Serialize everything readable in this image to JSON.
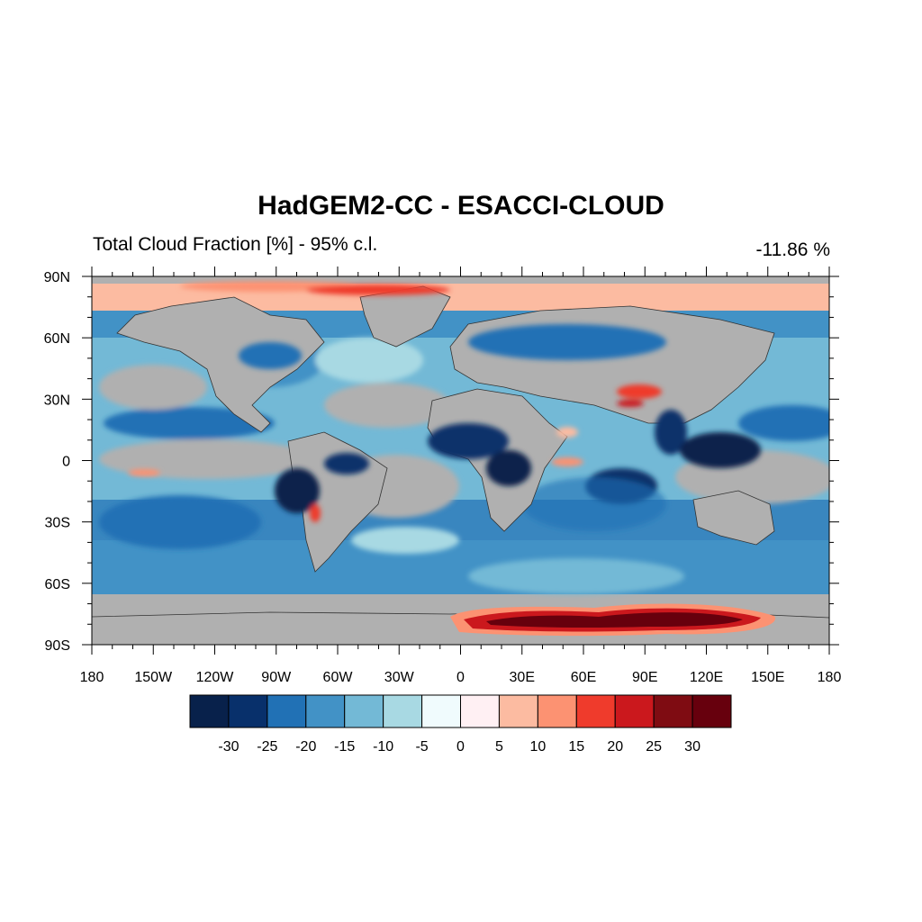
{
  "figure": {
    "title": "HadGEM2-CC - ESACCI-CLOUD",
    "subtitle": "Total Cloud Fraction [%] - 95% c.l.",
    "global_mean": "-11.86 %"
  },
  "chart_data": {
    "type": "heatmap",
    "projection": "cylindrical-equidistant",
    "variable": "Total Cloud Fraction [%]",
    "xlim": [
      -180,
      180
    ],
    "ylim": [
      -90,
      90
    ],
    "x_ticks": [
      {
        "value": -180,
        "label": "180"
      },
      {
        "value": -150,
        "label": "150W"
      },
      {
        "value": -120,
        "label": "120W"
      },
      {
        "value": -90,
        "label": "90W"
      },
      {
        "value": -60,
        "label": "60W"
      },
      {
        "value": -30,
        "label": "30W"
      },
      {
        "value": 0,
        "label": "0"
      },
      {
        "value": 30,
        "label": "30E"
      },
      {
        "value": 60,
        "label": "60E"
      },
      {
        "value": 90,
        "label": "90E"
      },
      {
        "value": 120,
        "label": "120E"
      },
      {
        "value": 150,
        "label": "150E"
      },
      {
        "value": 180,
        "label": "180"
      }
    ],
    "y_ticks": [
      {
        "value": 90,
        "label": "90N"
      },
      {
        "value": 60,
        "label": "60N"
      },
      {
        "value": 30,
        "label": "30N"
      },
      {
        "value": 0,
        "label": "0"
      },
      {
        "value": -30,
        "label": "30S"
      },
      {
        "value": -60,
        "label": "60S"
      },
      {
        "value": -90,
        "label": "90S"
      }
    ],
    "masked_color": "#b0b0b0",
    "colorbar": {
      "levels": [
        -30,
        -25,
        -20,
        -15,
        -10,
        -5,
        0,
        5,
        10,
        15,
        20,
        25,
        30
      ],
      "labels": [
        "-30",
        "-25",
        "-20",
        "-15",
        "-10",
        "-5",
        "0",
        "5",
        "10",
        "15",
        "20",
        "25",
        "30"
      ],
      "colors": [
        "#08214b",
        "#08306b",
        "#2171b5",
        "#4292c6",
        "#73b9d6",
        "#a8d9e3",
        "#f0fbfd",
        "#fff0f3",
        "#fcbba1",
        "#fc9272",
        "#ef3b2c",
        "#cb181d",
        "#7f0c12",
        "#67000d"
      ]
    }
  }
}
